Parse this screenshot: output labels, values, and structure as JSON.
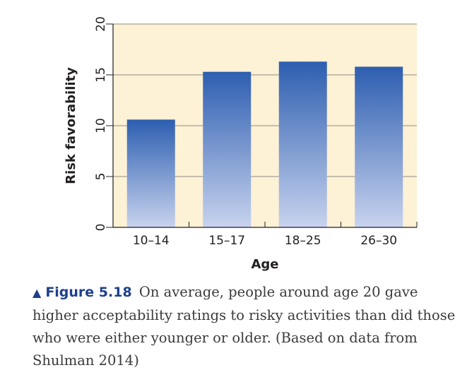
{
  "colors": {
    "plot_background": "#fdf1d6",
    "bar_top": "#2d5eb0",
    "bar_bottom": "#c8d3ee",
    "caption_accent": "#1e3f8c"
  },
  "chart_data": {
    "type": "bar",
    "categories": [
      "10–14",
      "15–17",
      "18–25",
      "26–30"
    ],
    "values": [
      10.6,
      15.3,
      16.3,
      15.8
    ],
    "xlabel": "Age",
    "ylabel": "Risk favorability",
    "ylim": [
      0,
      20
    ],
    "yticks": [
      "0",
      "5",
      "10",
      "15",
      "20"
    ],
    "grid": true
  },
  "caption": {
    "marker": "▲",
    "label": "Figure 5.18",
    "text": "On average, people around age 20 gave higher acceptability ratings to risky activities than did those who were either younger or older. (Based on data from Shulman 2014)"
  }
}
